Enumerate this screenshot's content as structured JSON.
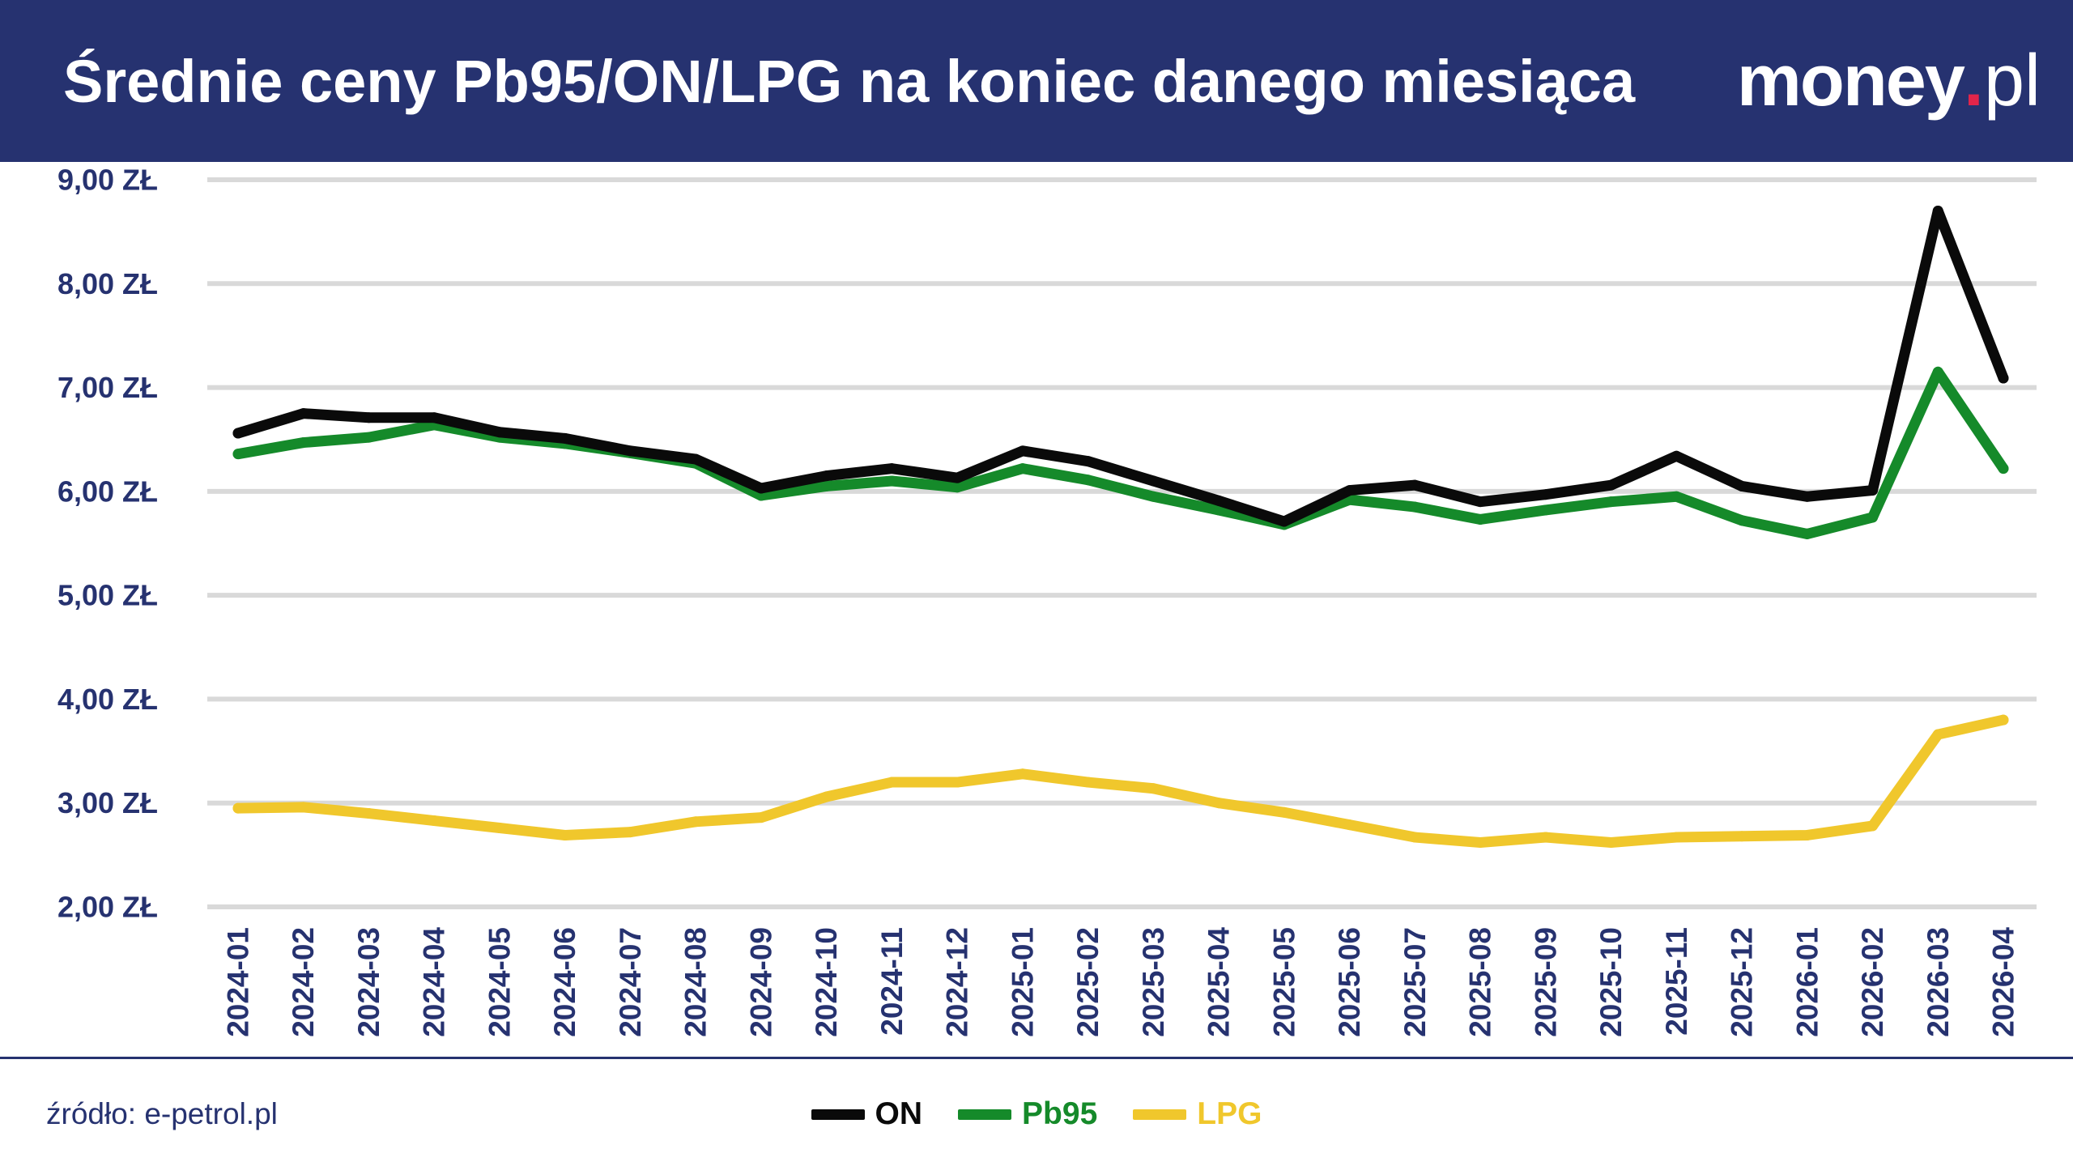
{
  "header": {
    "logo": {
      "brand": "money",
      "dot": ".",
      "tld": "pl"
    }
  },
  "footer": {
    "source": "źródło: e-petrol.pl"
  },
  "colors": {
    "navy": "#263270",
    "grid": "#d9d9d9",
    "logo_dot": "#e2254a",
    "header_text": "#ffffff"
  },
  "chart_data": {
    "type": "line",
    "title": "Średnie ceny Pb95/ON/LPG na koniec danego miesiąca",
    "xlabel": "",
    "ylabel": "",
    "ylim": [
      2,
      9
    ],
    "yticks": [
      9,
      8,
      7,
      6,
      5,
      4,
      3,
      2
    ],
    "ytick_labels": [
      "9,00 ZŁ",
      "8,00 ZŁ",
      "7,00 ZŁ",
      "6,00 ZŁ",
      "5,00 ZŁ",
      "4,00 ZŁ",
      "3,00 ZŁ",
      "2,00 ZŁ"
    ],
    "grid": true,
    "legend": "bottom-center",
    "categories": [
      "2024-01",
      "2024-02",
      "2024-03",
      "2024-04",
      "2024-05",
      "2024-06",
      "2024-07",
      "2024-08",
      "2024-09",
      "2024-10",
      "2024-11",
      "2024-12",
      "2025-01",
      "2025-02",
      "2025-03",
      "2025-04",
      "2025-05",
      "2025-06",
      "2025-07",
      "2025-08",
      "2025-09",
      "2025-10",
      "2025-11",
      "2025-12",
      "2026-01",
      "2026-02",
      "2026-03",
      "2026-04"
    ],
    "series": [
      {
        "name": "ON",
        "color": "#0a0a0a",
        "values": [
          6.56,
          6.75,
          6.71,
          6.71,
          6.57,
          6.51,
          6.39,
          6.31,
          6.03,
          6.15,
          6.22,
          6.13,
          6.39,
          6.29,
          6.1,
          5.91,
          5.71,
          6.01,
          6.06,
          5.9,
          5.97,
          6.06,
          6.34,
          6.05,
          5.95,
          6.01,
          8.7,
          7.09
        ]
      },
      {
        "name": "Pb95",
        "color": "#158a2a",
        "values": [
          6.36,
          6.47,
          6.52,
          6.64,
          6.52,
          6.46,
          6.37,
          6.27,
          5.96,
          6.05,
          6.1,
          6.04,
          6.22,
          6.11,
          5.95,
          5.82,
          5.68,
          5.92,
          5.85,
          5.73,
          5.82,
          5.9,
          5.95,
          5.72,
          5.59,
          5.75,
          7.15,
          6.22
        ]
      },
      {
        "name": "LPG",
        "color": "#f0c72c",
        "values": [
          2.95,
          2.96,
          2.9,
          2.83,
          2.76,
          2.69,
          2.72,
          2.82,
          2.86,
          3.06,
          3.2,
          3.2,
          3.28,
          3.2,
          3.14,
          3.0,
          2.91,
          2.79,
          2.67,
          2.62,
          2.67,
          2.62,
          2.67,
          2.68,
          2.69,
          2.78,
          3.66,
          3.8
        ]
      }
    ]
  }
}
